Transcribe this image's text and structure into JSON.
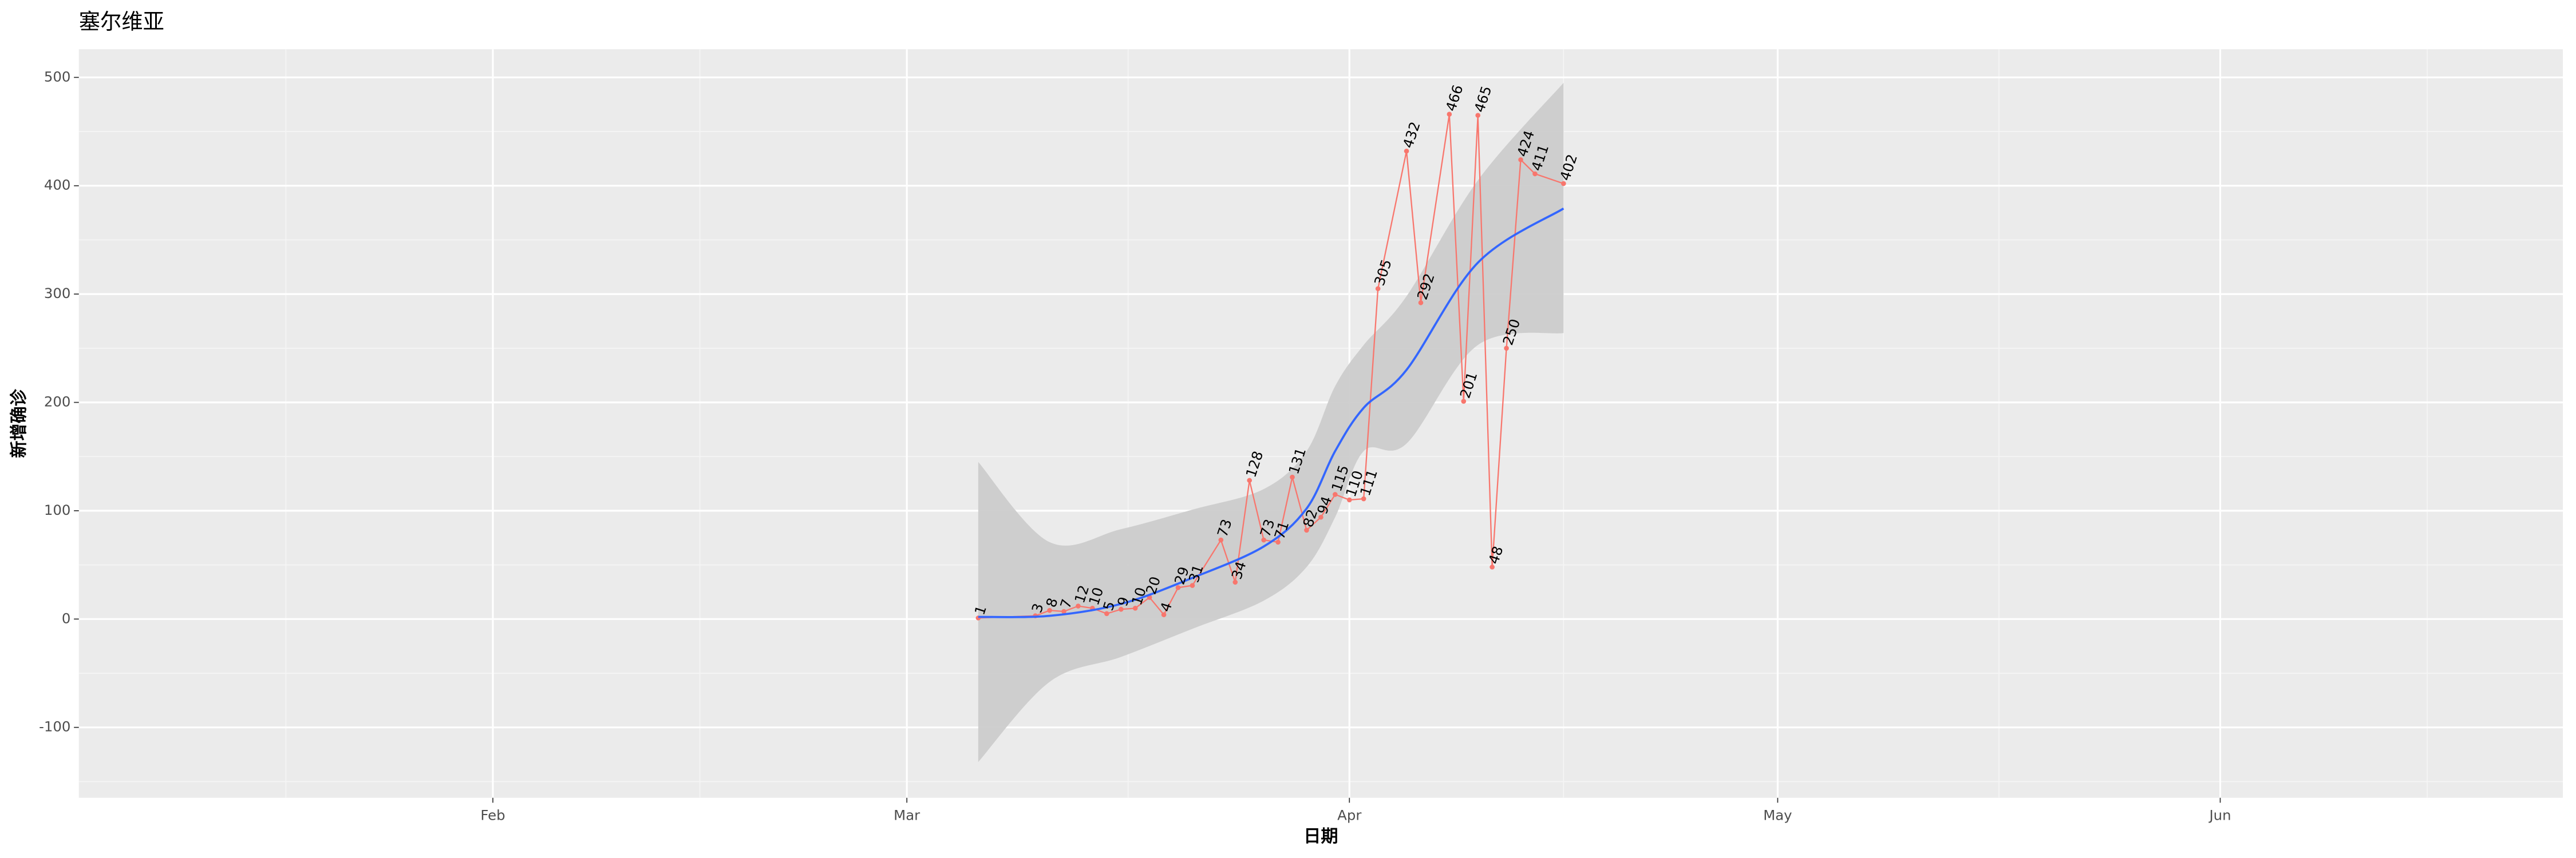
{
  "chart_data": {
    "type": "line",
    "title": "塞尔维亚",
    "x_label": "日期",
    "y_label": "新增确诊",
    "x": [
      "03-06",
      "03-10",
      "03-11",
      "03-12",
      "03-13",
      "03-14",
      "03-15",
      "03-16",
      "03-17",
      "03-18",
      "03-19",
      "03-20",
      "03-21",
      "03-23",
      "03-24",
      "03-25",
      "03-26",
      "03-27",
      "03-28",
      "03-29",
      "03-30",
      "03-31",
      "04-01",
      "04-02",
      "04-03",
      "04-05",
      "04-06",
      "04-08",
      "04-09",
      "04-10",
      "04-11",
      "04-12",
      "04-13",
      "04-14",
      "04-16"
    ],
    "values": [
      1,
      3,
      8,
      7,
      12,
      10,
      5,
      9,
      10,
      20,
      4,
      29,
      31,
      73,
      34,
      128,
      73,
      71,
      131,
      82,
      94,
      115,
      110,
      111,
      305,
      432,
      292,
      466,
      201,
      465,
      48,
      250,
      424,
      411,
      402
    ],
    "color": "#f8766d",
    "smooth": {
      "color": "#3366ff",
      "band_color": "#cccccc",
      "x": [
        "03-06",
        "03-11",
        "03-16",
        "03-21",
        "03-26",
        "03-29",
        "03-31",
        "04-02",
        "04-05",
        "04-10",
        "04-16"
      ],
      "values": [
        2,
        3,
        14,
        38,
        67,
        102,
        155,
        195,
        230,
        329,
        379
      ],
      "lower": [
        -132,
        -58,
        -35,
        -9,
        17,
        48,
        94,
        155,
        162,
        253,
        264
      ],
      "upper": [
        145,
        71,
        83,
        101,
        120,
        155,
        215,
        253,
        298,
        405,
        495
      ]
    },
    "xlim": [
      "01-03",
      "06-25"
    ],
    "xticks": [
      {
        "value": "02-01",
        "label": "Feb"
      },
      {
        "value": "03-01",
        "label": "Mar"
      },
      {
        "value": "04-01",
        "label": "Apr"
      },
      {
        "value": "05-01",
        "label": "May"
      },
      {
        "value": "06-01",
        "label": "Jun"
      }
    ],
    "ylim": [
      -165,
      526
    ],
    "yticks": [
      -100,
      0,
      100,
      200,
      300,
      400,
      500
    ],
    "grid": true
  }
}
